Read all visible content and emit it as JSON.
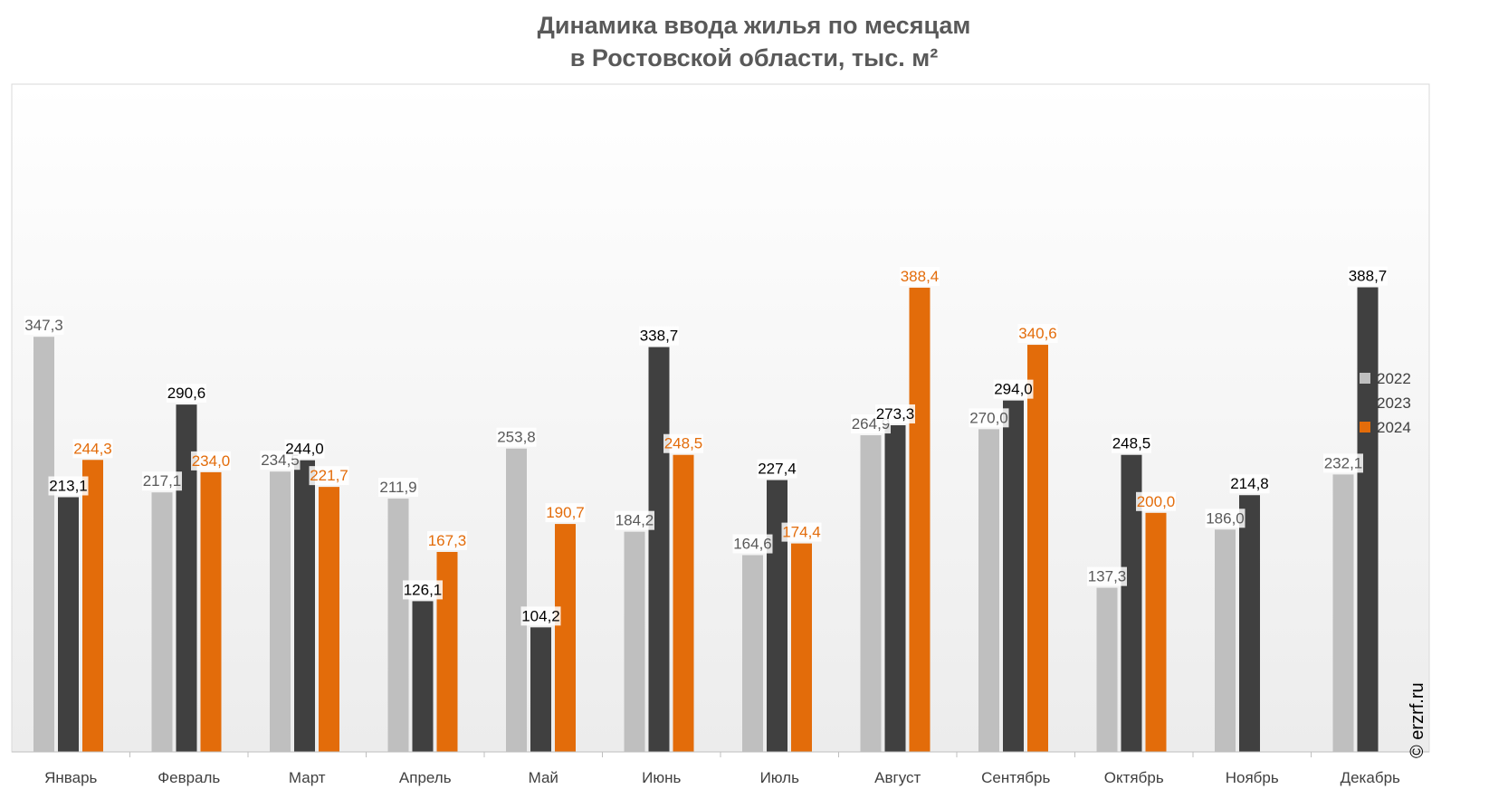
{
  "chart_data": {
    "type": "bar",
    "title": "Динамика ввода жилья по месяцам",
    "subtitle": "в Ростовской области, тыс. м²",
    "categories": [
      "Январь",
      "Февраль",
      "Март",
      "Апрель",
      "Май",
      "Июнь",
      "Июль",
      "Август",
      "Сентябрь",
      "Октябрь",
      "Ноябрь",
      "Декабрь"
    ],
    "series": [
      {
        "name": "2022",
        "color": "#bfbfbf",
        "label_color": "#595959",
        "values": [
          347.3,
          217.1,
          234.5,
          211.9,
          253.8,
          184.2,
          164.6,
          264.9,
          270.0,
          137.3,
          186.0,
          232.1
        ],
        "labels": [
          "347,3",
          "217,1",
          "234,5",
          "211,9",
          "253,8",
          "184,2",
          "164,6",
          "264,9",
          "270,0",
          "137,3",
          "186,0",
          "232,1"
        ]
      },
      {
        "name": "2023",
        "color": "#404040",
        "label_color": "#000000",
        "values": [
          213.1,
          290.6,
          244.0,
          126.1,
          104.2,
          338.7,
          227.4,
          273.3,
          294.0,
          248.5,
          214.8,
          388.7
        ],
        "labels": [
          "213,1",
          "290,6",
          "244,0",
          "126,1",
          "104,2",
          "338,7",
          "227,4",
          "273,3",
          "294,0",
          "248,5",
          "214,8",
          "388,7"
        ]
      },
      {
        "name": "2024",
        "color": "#e36c0a",
        "label_color": "#e36c0a",
        "values": [
          244.3,
          234.0,
          221.7,
          167.3,
          190.7,
          248.5,
          174.4,
          388.4,
          340.6,
          200.0,
          null,
          null
        ],
        "labels": [
          "244,3",
          "234,0",
          "221,7",
          "167,3",
          "190,7",
          "248,5",
          "174,4",
          "388,4",
          "340,6",
          "200,0",
          null,
          null
        ]
      }
    ],
    "ylim": [
      0,
      400
    ],
    "grid": false,
    "legend_position": "right"
  },
  "copyright": "© erzrf.ru"
}
